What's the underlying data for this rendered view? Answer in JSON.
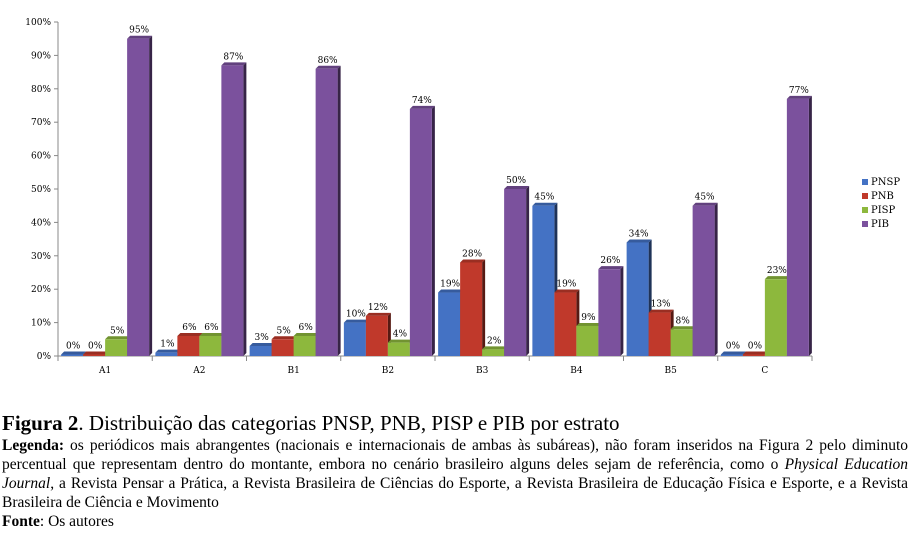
{
  "chart_data": {
    "type": "bar",
    "categories": [
      "A1",
      "A2",
      "B1",
      "B2",
      "B3",
      "B4",
      "B5",
      "C"
    ],
    "series": [
      {
        "name": "PNSP",
        "color": "#4472C4",
        "values": [
          0,
          1,
          3,
          10,
          19,
          45,
          34,
          0
        ]
      },
      {
        "name": "PNB",
        "color": "#C0392B",
        "values": [
          0,
          6,
          5,
          12,
          28,
          19,
          13,
          0
        ]
      },
      {
        "name": "PISP",
        "color": "#8DB83D",
        "values": [
          5,
          6,
          6,
          4,
          2,
          9,
          8,
          23
        ]
      },
      {
        "name": "PIB",
        "color": "#7B519D",
        "values": [
          95,
          87,
          86,
          74,
          50,
          26,
          45,
          77
        ]
      }
    ],
    "yticks": [
      "0%",
      "10%",
      "20%",
      "30%",
      "40%",
      "50%",
      "60%",
      "70%",
      "80%",
      "90%",
      "100%"
    ],
    "ylim": [
      0,
      100
    ],
    "value_suffix": "%",
    "legend_position": "right",
    "grid": false
  },
  "caption": {
    "figure_label": "Figura 2",
    "figure_title": ". Distribuição das categorias PNSP, PNB, PISP e PIB por estrato",
    "legend_label": "Legenda:",
    "legend_text_1": " os periódicos mais abrangentes (nacionais e internacionais de ambas às subáreas), não foram inseridos na Figura 2 pelo diminuto percentual que representam dentro do montante, embora no cenário brasileiro alguns deles sejam de referência, como o ",
    "legend_italic": "Physical Education Journal",
    "legend_text_2": ", a Revista Pensar a Prática, a Revista Brasileira de Ciências do Esporte, a Revista Brasileira de Educação Física e Esporte, e a Revista Brasileira de Ciência e Movimento",
    "source_label": "Fonte",
    "source_text": ": Os autores"
  }
}
